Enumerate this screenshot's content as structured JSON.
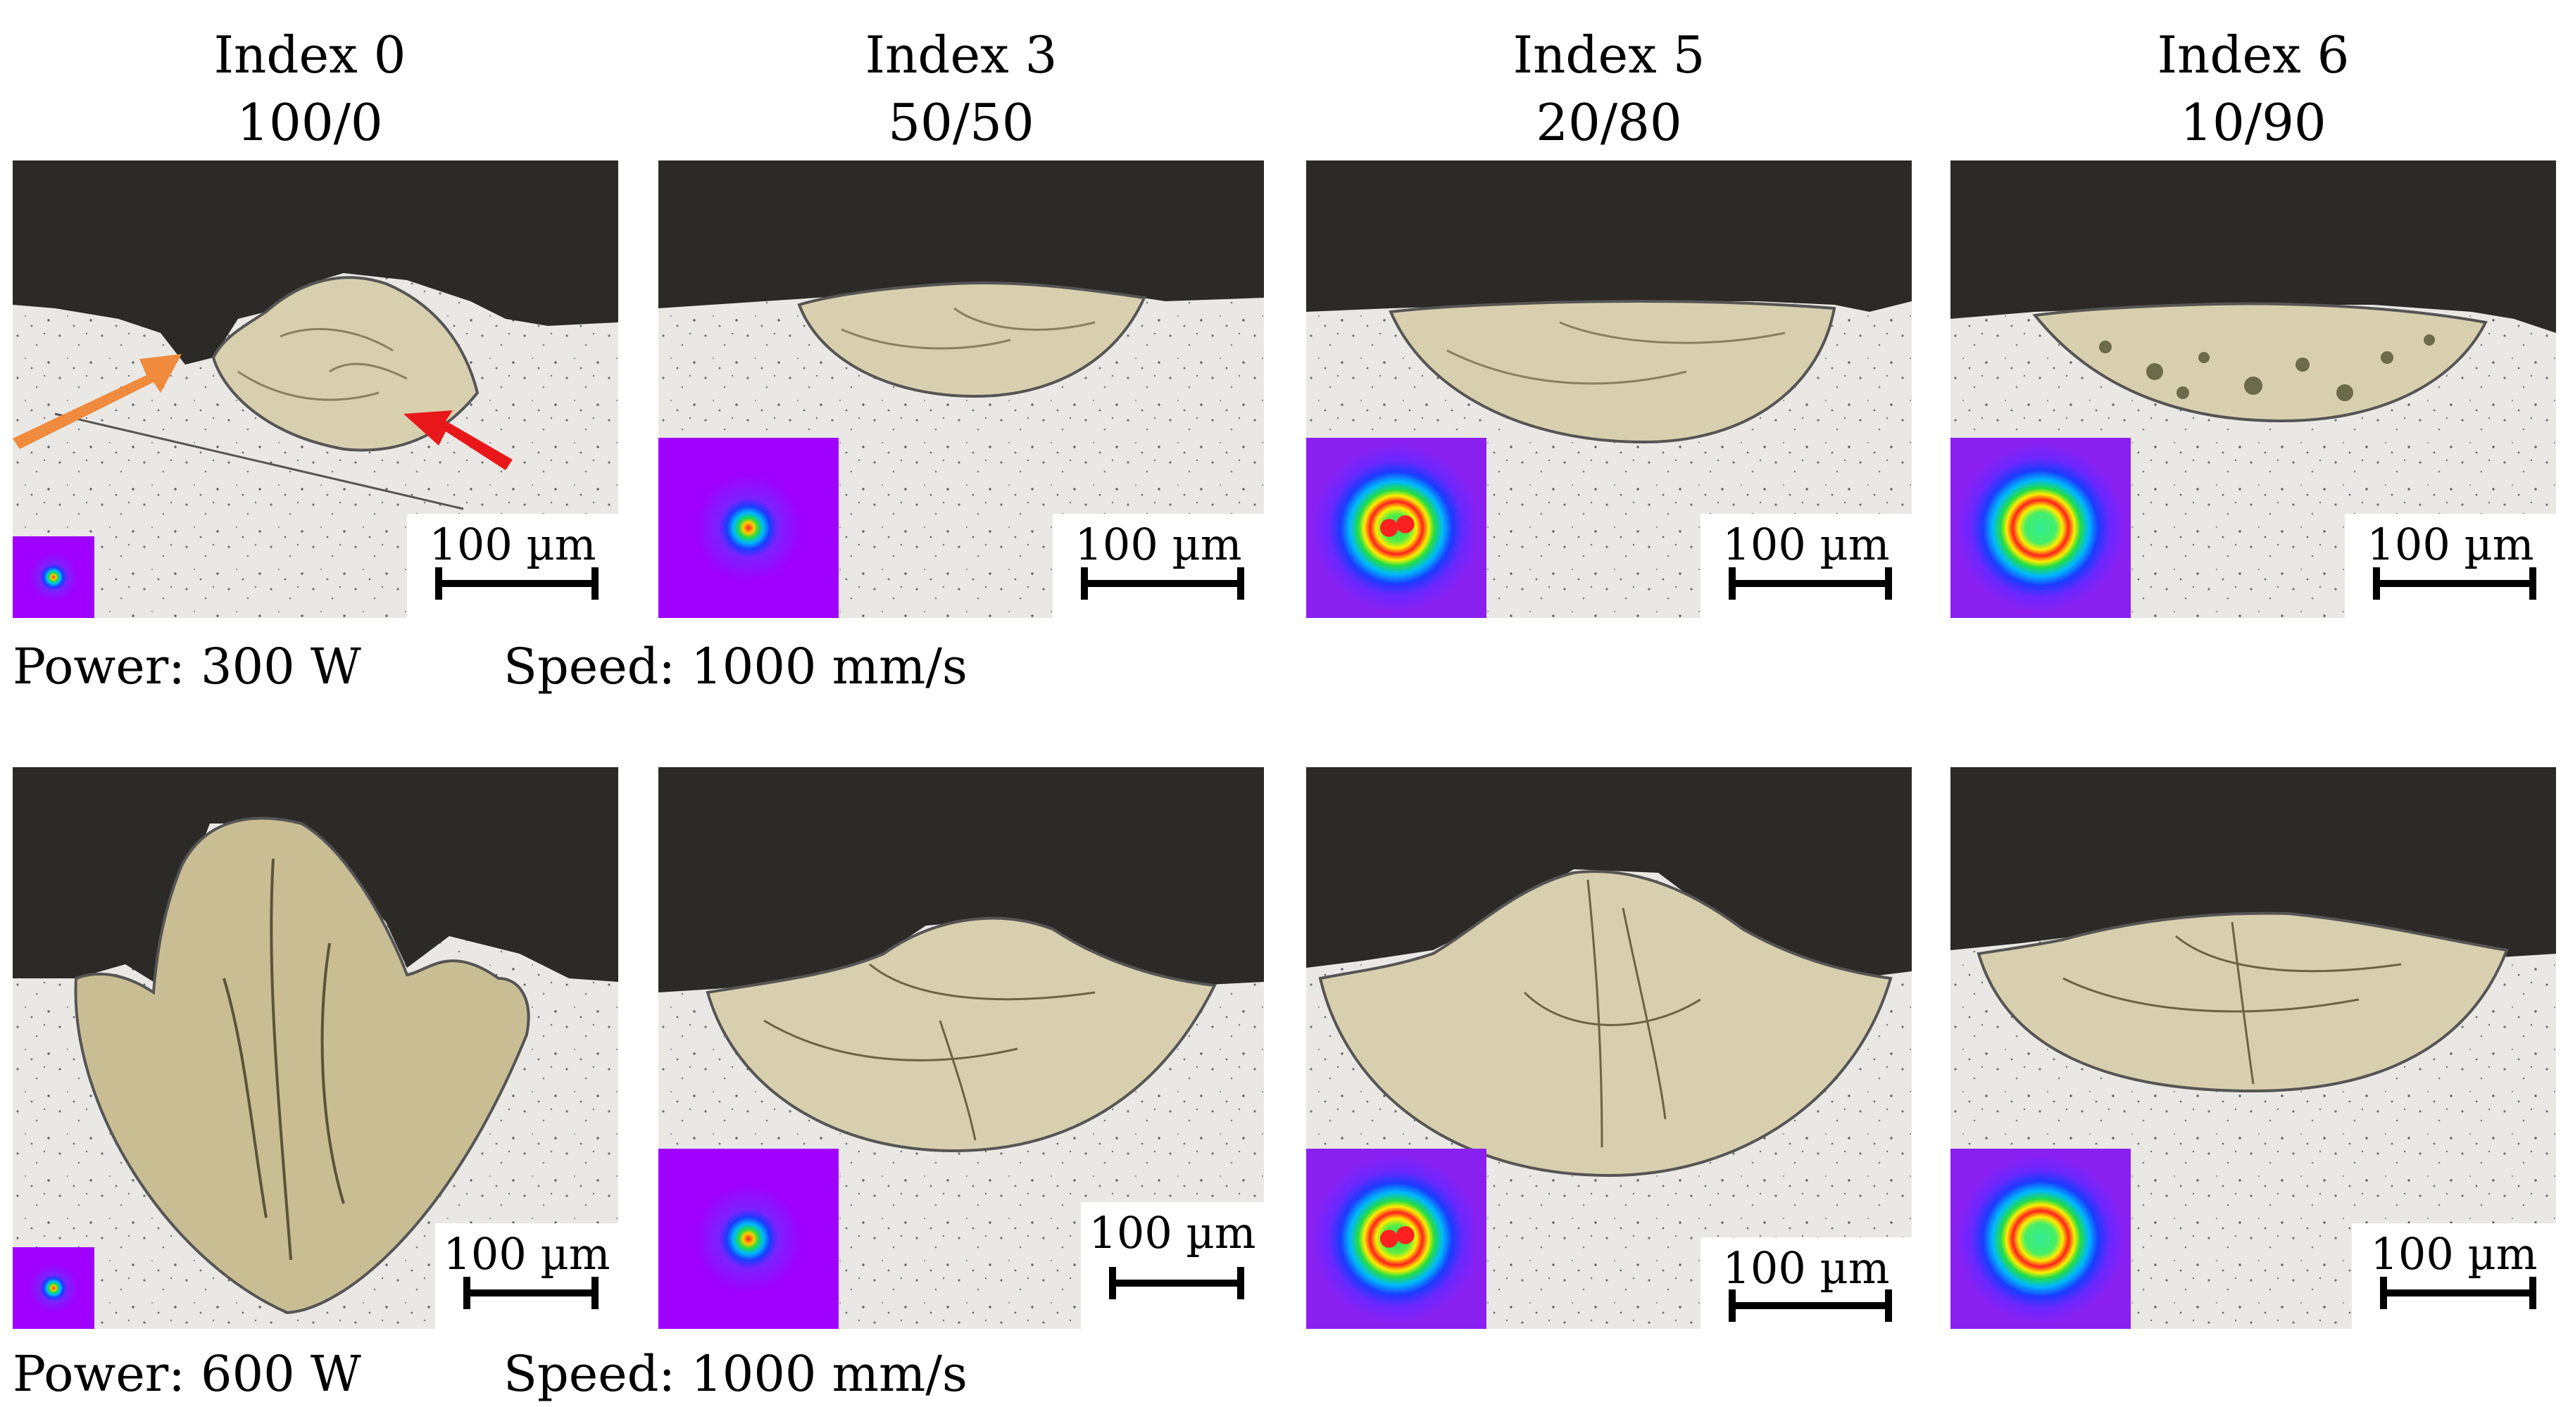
{
  "columns": [
    {
      "index": "Index 0",
      "ratio": "100/0"
    },
    {
      "index": "Index 3",
      "ratio": "50/50"
    },
    {
      "index": "Index 5",
      "ratio": "20/80"
    },
    {
      "index": "Index 6",
      "ratio": "10/90"
    }
  ],
  "scale_label": "100 µm",
  "rows": [
    {
      "power": "Power: 300 W",
      "speed": "Speed: 1000 mm/s"
    },
    {
      "power": "Power: 600 W",
      "speed": "Speed: 1000 mm/s"
    }
  ],
  "colors": {
    "resin": "#2b2a26",
    "substrate": "#e9e8e4",
    "melt_pool": "#d8cfae",
    "beam_background": "#a000ff",
    "orange_arrow": "#f08a3c",
    "red_arrow": "#e8181a"
  },
  "annotations": [
    "orange-arrow",
    "red-arrow"
  ]
}
